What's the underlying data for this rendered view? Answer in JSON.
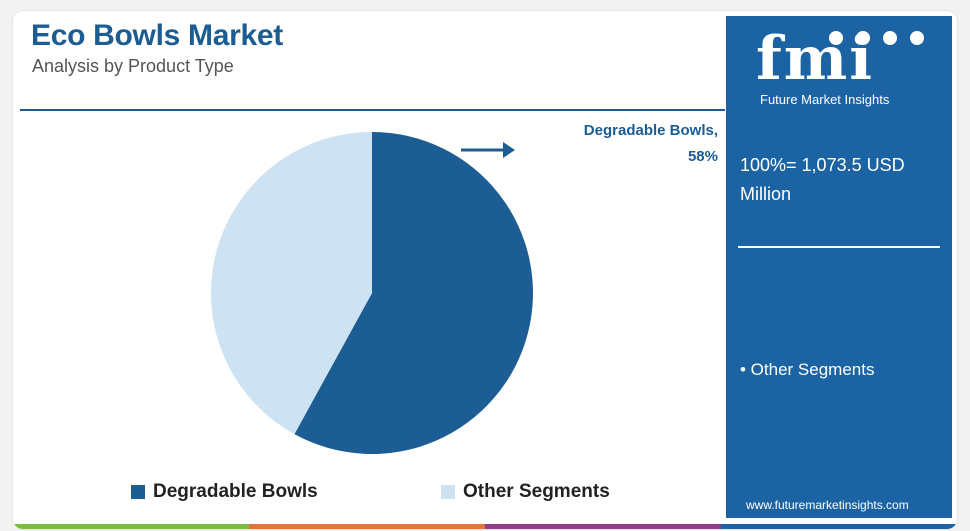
{
  "header": {
    "title": "Eco Bowls Market",
    "subtitle": "Analysis by Product Type"
  },
  "callout": {
    "line1": "Degradable Bowls,",
    "line2": "58%"
  },
  "legend": [
    {
      "label": "Degradable Bowls",
      "color": "#1c5d93"
    },
    {
      "label": "Other Segments",
      "color": "#cde3f3"
    }
  ],
  "sidebar": {
    "logo_text": "fmi",
    "logo_caption": "Future Market Insights",
    "total_line1": "100%= 1,073.5 USD",
    "total_line2": "Million",
    "other_note": "• Other Segments",
    "website": "www.futuremarketinsights.com"
  },
  "colors": {
    "brand": "#1c63a3",
    "primary_slice": "#1c5d93",
    "secondary_slice": "#cde3f3",
    "stripe": [
      "#7dbb42",
      "#e2733b",
      "#8a3e86",
      "#1c63a3"
    ]
  },
  "chart_data": {
    "type": "pie",
    "title": "Eco Bowls Market",
    "subtitle": "Analysis by Product Type",
    "slices": [
      {
        "label": "Degradable Bowls",
        "value": 58
      },
      {
        "label": "Other Segments",
        "value": 42
      }
    ],
    "unit": "%",
    "total": "1,073.5 USD Million",
    "legend_position": "bottom"
  }
}
